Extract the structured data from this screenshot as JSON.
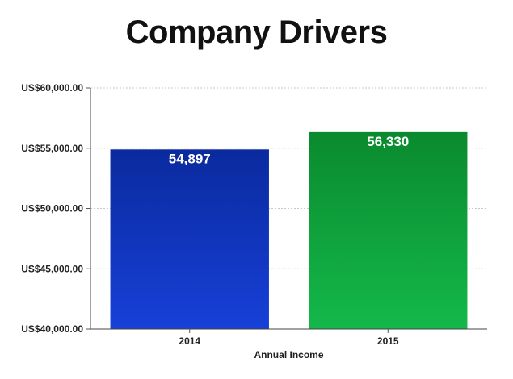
{
  "chart_data": {
    "type": "bar",
    "title": "Company Drivers",
    "xlabel": "Annual Income",
    "ylabel": "",
    "categories": [
      "2014",
      "2015"
    ],
    "values": [
      54897,
      56330
    ],
    "value_labels": [
      "54,897",
      "56,330"
    ],
    "ylim": [
      40000,
      60000
    ],
    "yticks": [
      40000,
      45000,
      50000,
      55000,
      60000
    ],
    "ytick_labels": [
      "US$40,000.00",
      "US$45,000.00",
      "US$50,000.00",
      "US$55,000.00",
      "US$60,000.00"
    ],
    "grid": true,
    "legend": "none",
    "colors": [
      {
        "top": "#0a2a9e",
        "bottom": "#1740d8"
      },
      {
        "top": "#0a8a2e",
        "bottom": "#14b84a"
      }
    ]
  }
}
